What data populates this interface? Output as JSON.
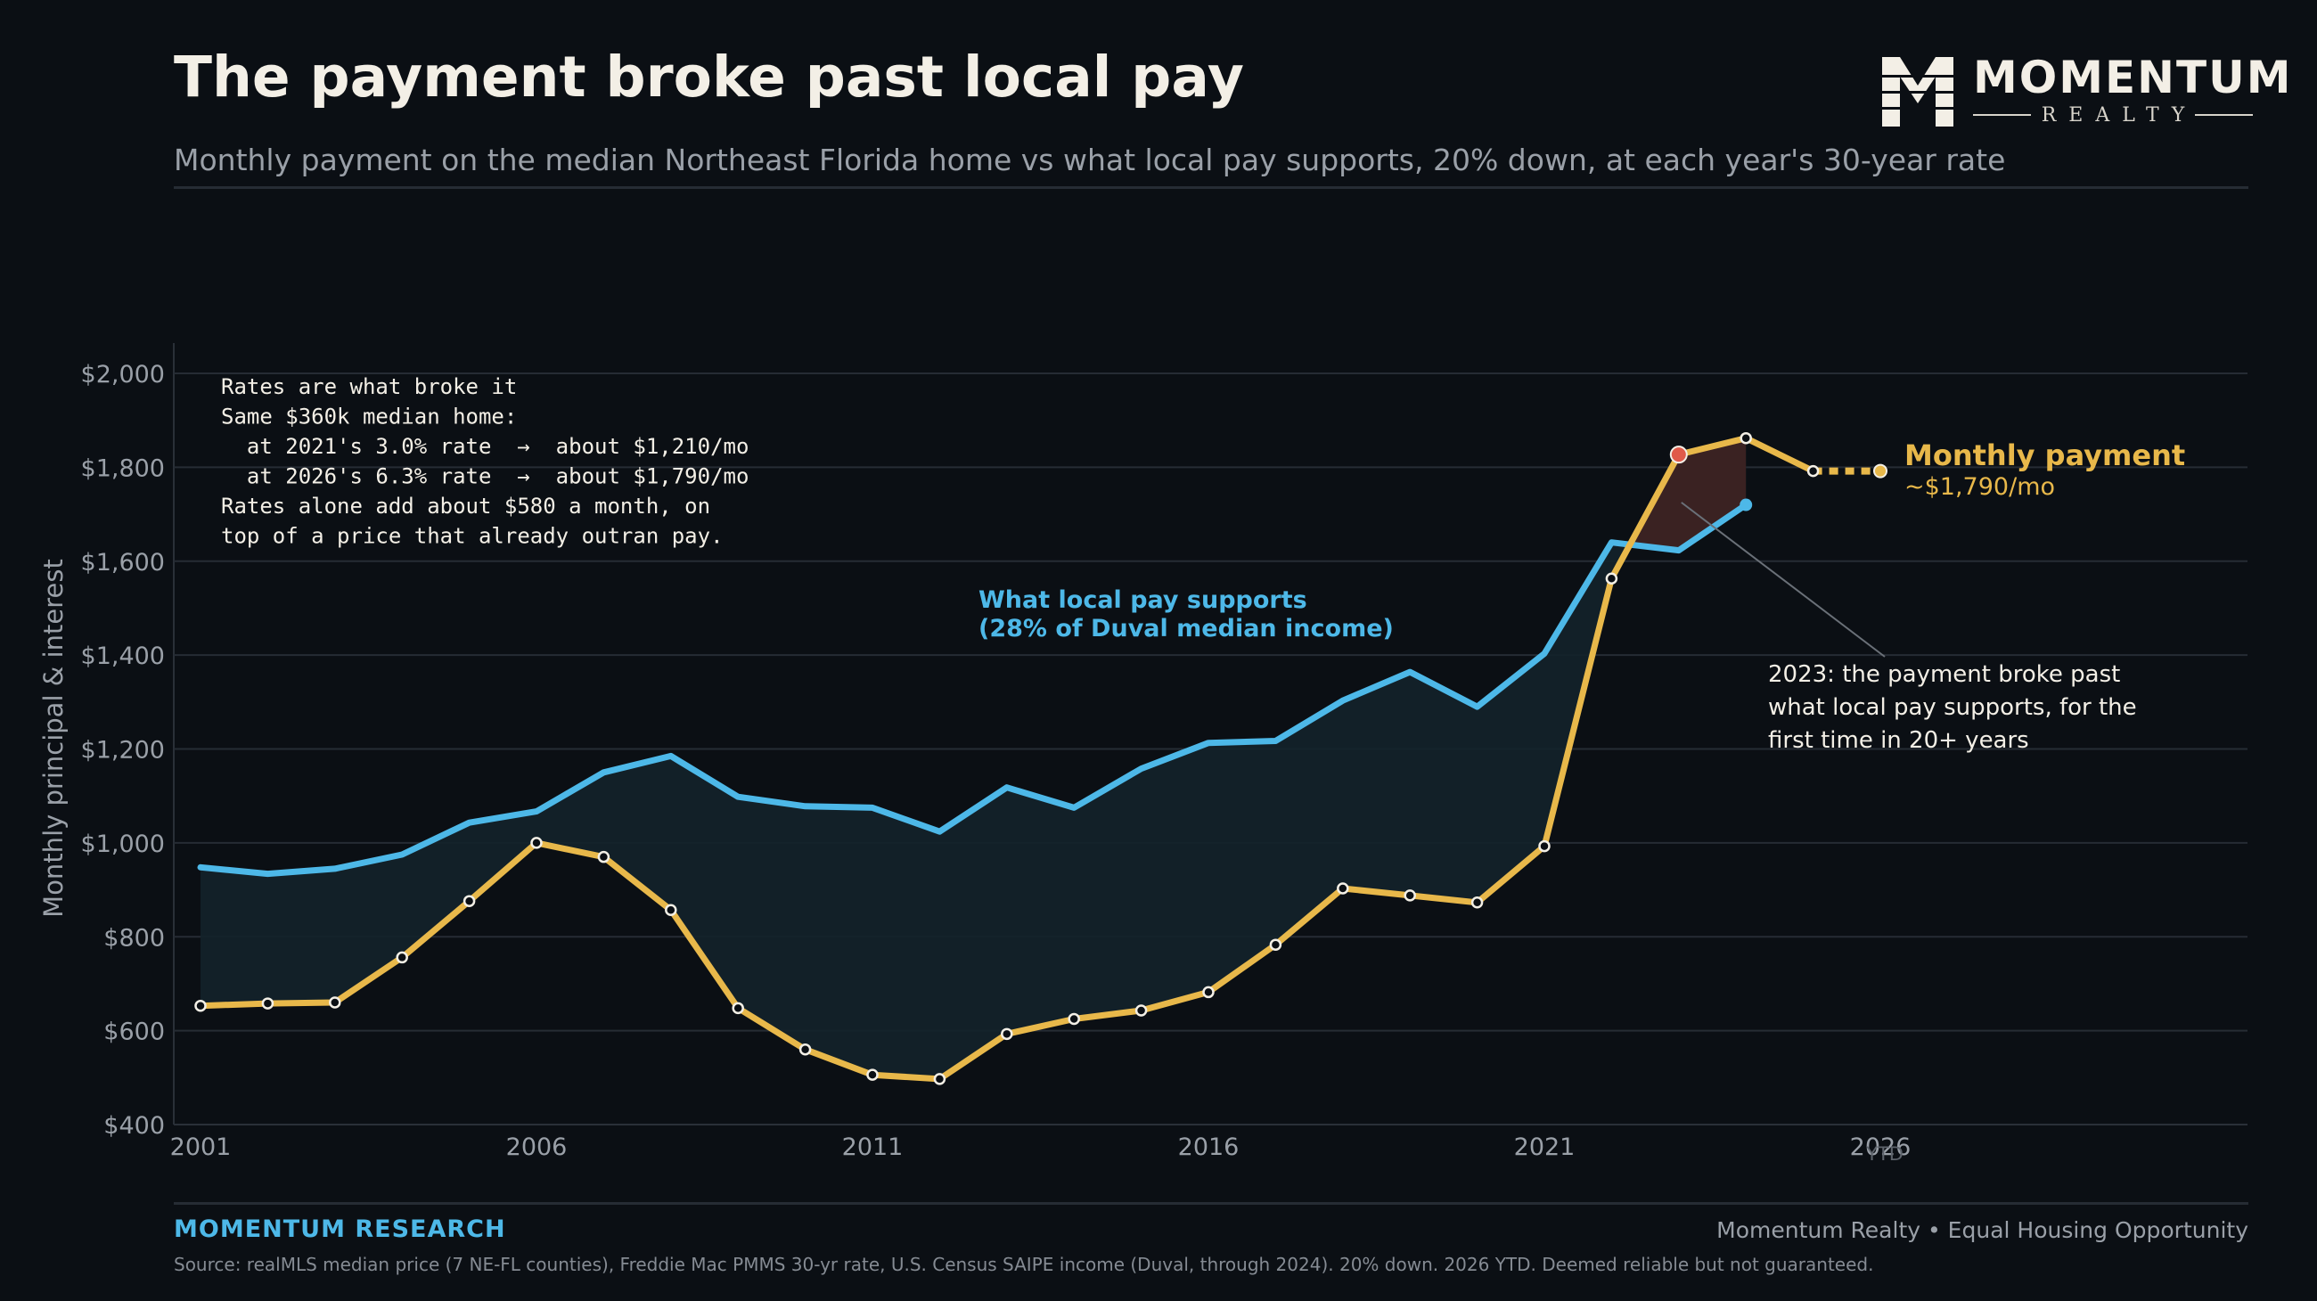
{
  "header": {
    "title": "The payment broke past local pay",
    "subtitle": "Monthly payment on the median Northeast Florida home vs what local pay supports, 20% down, at each year's 30-year rate"
  },
  "brand": {
    "logo_name": "MOMENTUM",
    "logo_sub": "REALTY"
  },
  "colors": {
    "payment": "#e8b84a",
    "supports": "#4db8e8",
    "gap_fill": "#13222a",
    "crossover_fill": "#3a2222",
    "crossover_dot": "#e05a4a",
    "grid": "#262c34",
    "text_muted": "#9aa0a8"
  },
  "chart_data": {
    "type": "line",
    "ylabel": "Monthly principal & interest",
    "ylim": [
      400,
      2000
    ],
    "xlim": [
      2001,
      2031
    ],
    "y_ticks": [
      "$400",
      "$600",
      "$800",
      "$1,000",
      "$1,200",
      "$1,400",
      "$1,600",
      "$1,800",
      "$2,000"
    ],
    "y_tick_values": [
      400,
      600,
      800,
      1000,
      1200,
      1400,
      1600,
      1800,
      2000
    ],
    "x_ticks": [
      "2001",
      "2006",
      "2011",
      "2016",
      "2021",
      "2026"
    ],
    "x_tick_values": [
      2001,
      2006,
      2011,
      2016,
      2021,
      2026
    ],
    "x_tick_note": "YTD",
    "grid": true,
    "series": [
      {
        "name": "What local pay supports (28% of Duval median income)",
        "x": [
          2001,
          2002,
          2003,
          2004,
          2005,
          2006,
          2007,
          2008,
          2009,
          2010,
          2011,
          2012,
          2013,
          2014,
          2015,
          2016,
          2017,
          2018,
          2019,
          2020,
          2021,
          2022,
          2023,
          2024
        ],
        "y": [
          948,
          934,
          945,
          975,
          1043,
          1067,
          1150,
          1185,
          1098,
          1078,
          1075,
          1024,
          1118,
          1075,
          1158,
          1213,
          1217,
          1303,
          1364,
          1290,
          1403,
          1640,
          1623,
          1720
        ]
      },
      {
        "name": "Monthly payment",
        "x": [
          2001,
          2002,
          2003,
          2004,
          2005,
          2006,
          2007,
          2008,
          2009,
          2010,
          2011,
          2012,
          2013,
          2014,
          2015,
          2016,
          2017,
          2018,
          2019,
          2020,
          2021,
          2022,
          2023,
          2024,
          2025
        ],
        "y": [
          653,
          658,
          660,
          756,
          876,
          1000,
          970,
          857,
          648,
          560,
          506,
          497,
          593,
          625,
          643,
          682,
          783,
          903,
          888,
          873,
          993,
          1563,
          1827,
          1862,
          1792
        ],
        "projection": {
          "x": [
            2025,
            2026
          ],
          "y": [
            1792,
            1792
          ]
        }
      }
    ],
    "labels": {
      "supports_line1": "What local pay supports",
      "supports_line2": "(28% of Duval median income)",
      "payment_name": "Monthly payment",
      "payment_value": "~$1,790/mo"
    },
    "callout": {
      "lines": [
        "2023: the payment broke past",
        "what local pay supports, for the",
        "first time in 20+ years"
      ],
      "points_to": {
        "x": 2023,
        "y": 1725
      }
    },
    "note_box": {
      "lines": [
        "Rates are what broke it",
        "Same $360k median home:",
        "  at 2021's 3.0% rate  →  about $1,210/mo",
        "  at 2026's 6.3% rate  →  about $1,790/mo",
        "Rates alone add about $580 a month, on",
        "top of a price that already outran pay."
      ]
    }
  },
  "footer": {
    "brand": "MOMENTUM RESEARCH",
    "right": "Momentum Realty  •  Equal Housing Opportunity",
    "source": "Source: realMLS median price (7 NE-FL counties), Freddie Mac PMMS 30-yr rate, U.S. Census SAIPE income (Duval, through 2024). 20% down. 2026 YTD. Deemed reliable but not guaranteed."
  }
}
